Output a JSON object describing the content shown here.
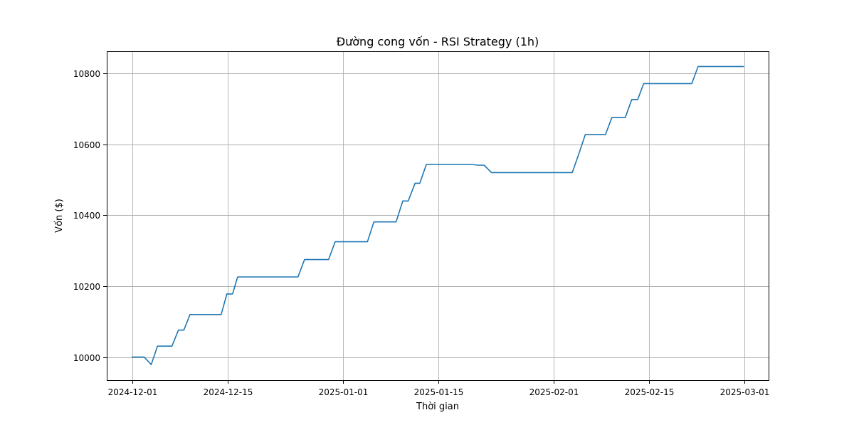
{
  "chart_data": {
    "type": "line",
    "title": "Đường cong vốn - RSI Strategy (1h)",
    "xlabel": "Thời gian",
    "ylabel": "Vốn ($)",
    "grid": true,
    "x_ticks": [
      "2024-12-01",
      "2024-12-15",
      "2025-01-01",
      "2025-01-15",
      "2025-02-01",
      "2025-02-15",
      "2025-03-01"
    ],
    "y_ticks": [
      10000,
      10200,
      10400,
      10600,
      10800
    ],
    "xlim": [
      "2024-11-27T06:00",
      "2025-03-04T14:00"
    ],
    "ylim": [
      9935,
      10862
    ],
    "colors": {
      "series": "#1f77b4"
    },
    "series": [
      {
        "x": [
          "2024-11-30T22:00",
          "2024-12-02T18:00",
          "2024-12-03T19:00",
          "2024-12-04T17:00",
          "2024-12-06T20:00",
          "2024-12-07T19:00",
          "2024-12-08T14:00",
          "2024-12-09T12:00",
          "2024-12-10T02:00",
          "2024-12-14T02:00",
          "2024-12-14T22:00",
          "2024-12-15T18:00",
          "2024-12-16T12:00",
          "2024-12-25T09:00",
          "2024-12-26T08:00",
          "2024-12-29T21:00",
          "2024-12-30T20:00",
          "2025-01-04T14:00",
          "2025-01-05T13:00",
          "2025-01-08T19:00",
          "2025-01-09T19:00",
          "2025-01-10T14:00",
          "2025-01-11T14:00",
          "2025-01-12T07:00",
          "2025-01-13T06:00",
          "2025-01-19T22:00",
          "2025-01-20T20:00",
          "2025-01-21T18:00",
          "2025-01-22T20:00",
          "2025-02-03T17:00",
          "2025-02-04T15:00",
          "2025-02-05T15:00",
          "2025-02-08T14:00",
          "2025-02-09T13:00",
          "2025-02-11T12:00",
          "2025-02-12T11:00",
          "2025-02-13T08:00",
          "2025-02-14T05:00",
          "2025-02-21T07:00",
          "2025-02-22T05:00",
          "2025-02-28T23:00"
        ],
        "values": [
          10000,
          10000,
          9979,
          10031,
          10031,
          10076,
          10076,
          10120,
          10120,
          10120,
          10178,
          10178,
          10226,
          10226,
          10275,
          10275,
          10325,
          10325,
          10381,
          10381,
          10440,
          10440,
          10490,
          10490,
          10543,
          10543,
          10541,
          10541,
          10520,
          10520,
          10570,
          10627,
          10627,
          10675,
          10675,
          10726,
          10726,
          10771,
          10771,
          10819,
          10819
        ]
      }
    ]
  }
}
